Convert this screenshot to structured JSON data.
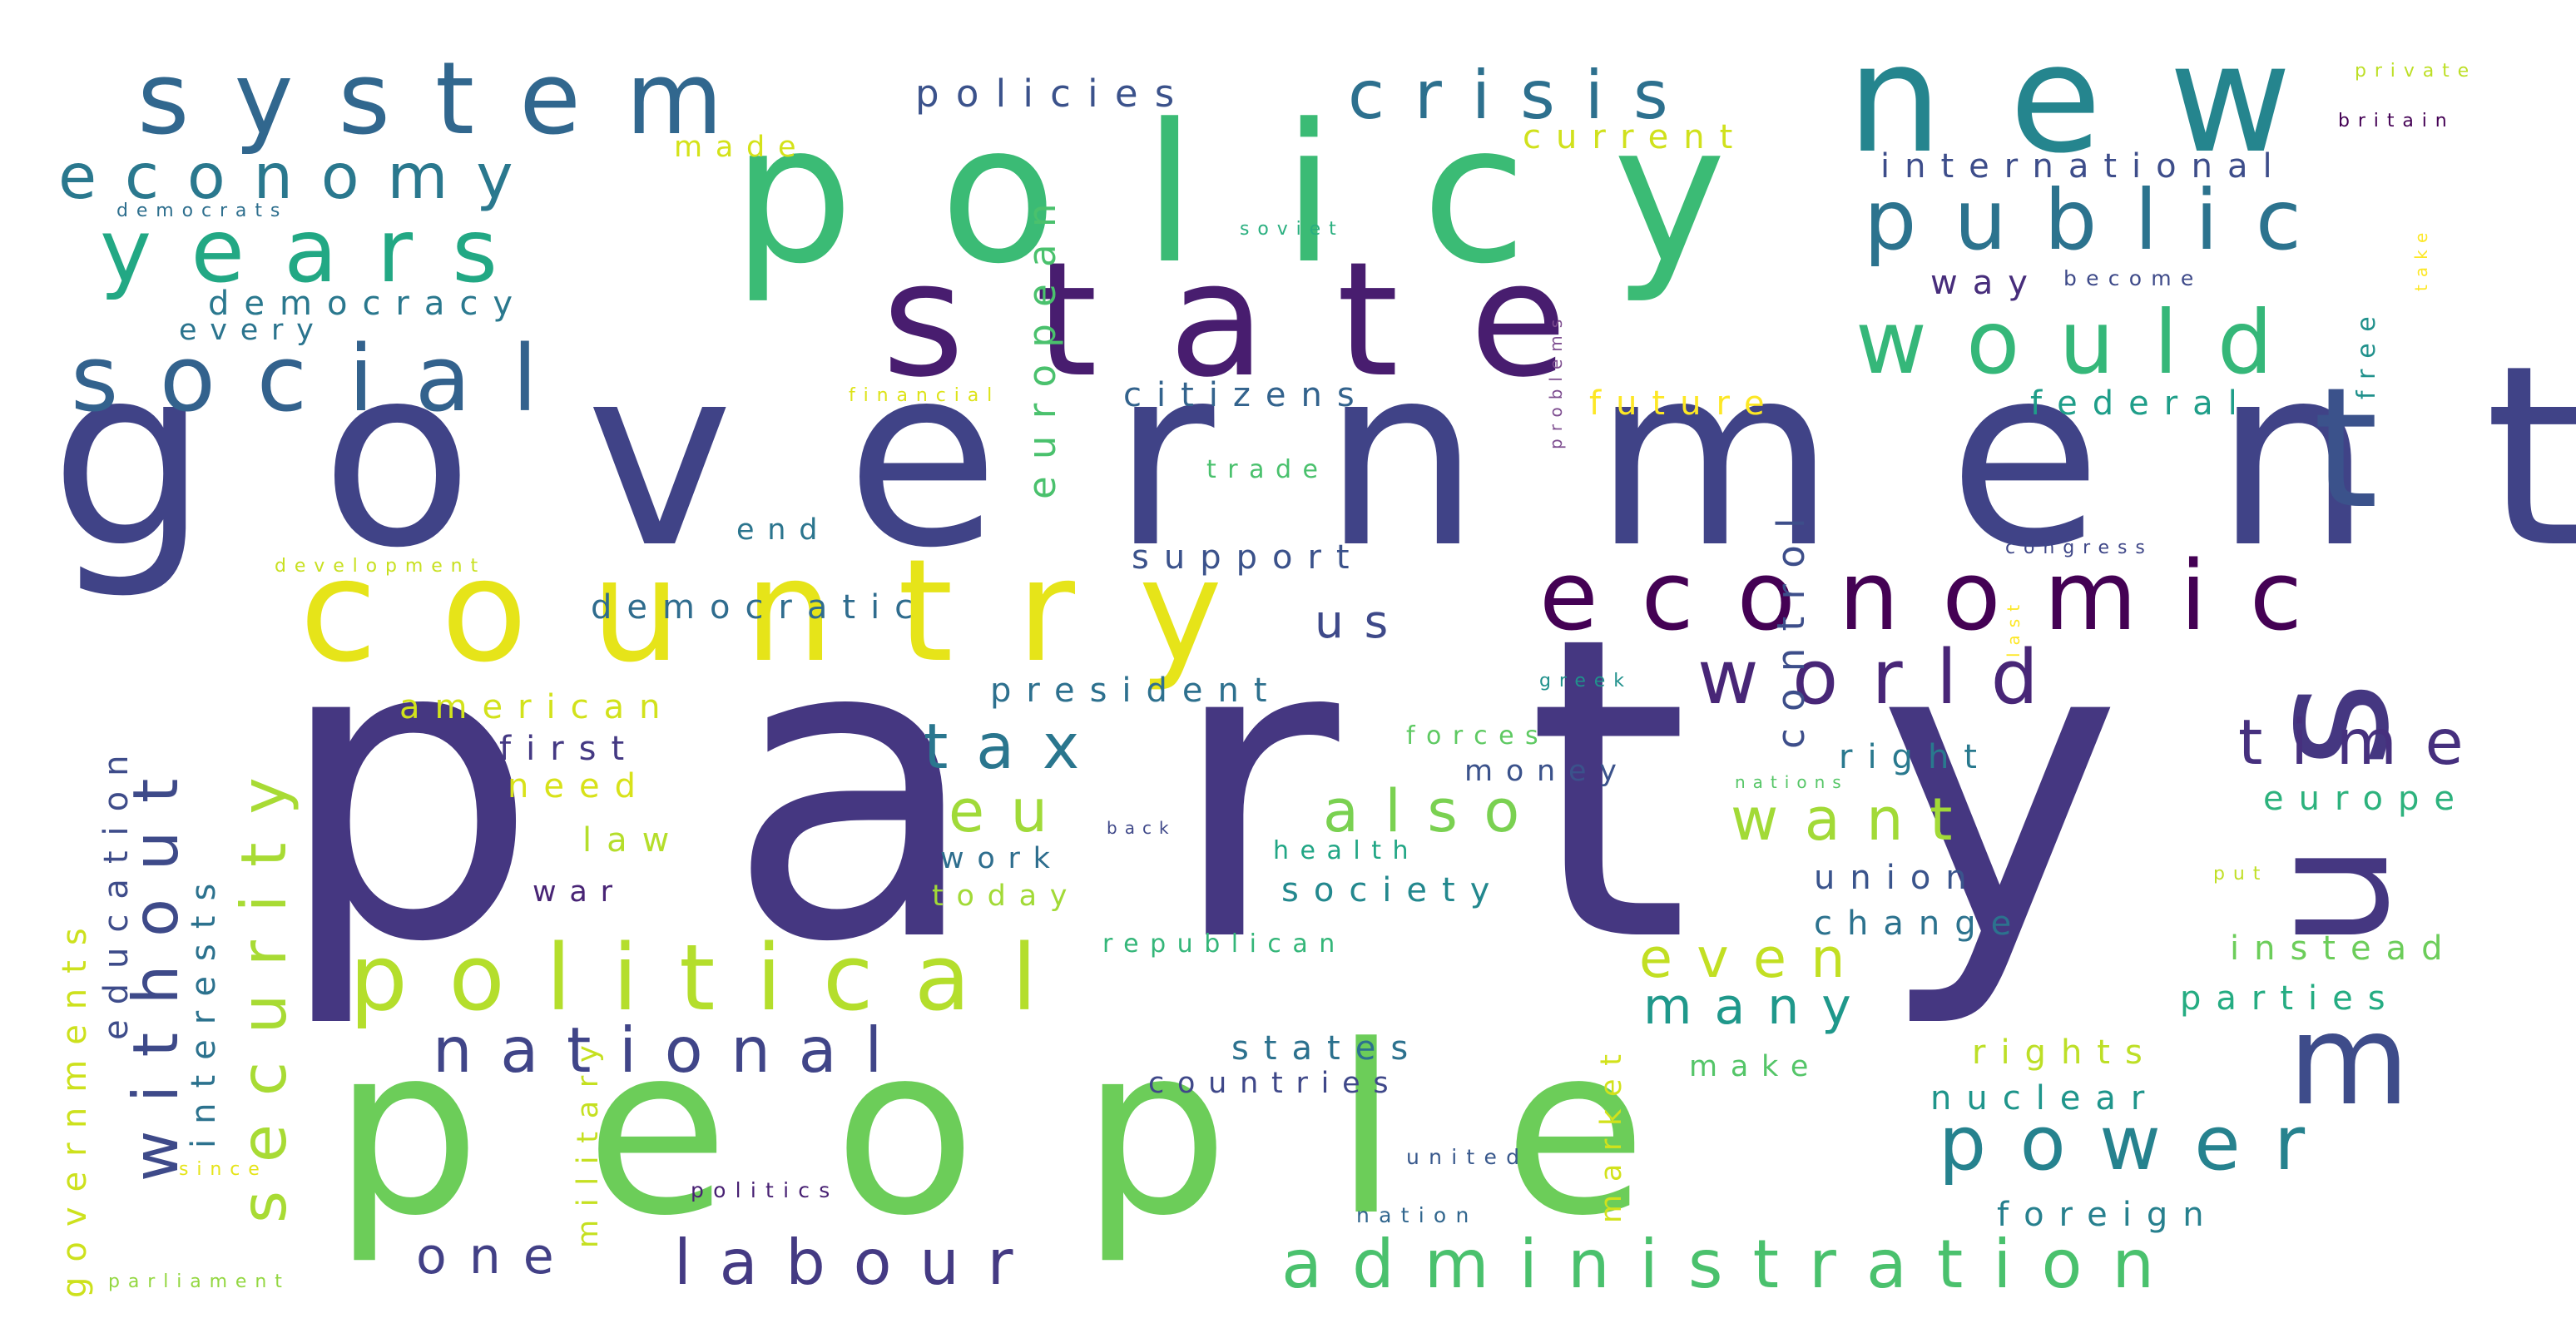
{
  "words": [
    {
      "text": "party",
      "color": "#453781"
    },
    {
      "text": "government",
      "color": "#404387"
    },
    {
      "text": "people",
      "color": "#6ccd59"
    },
    {
      "text": "policy",
      "color": "#3bbb75"
    },
    {
      "text": "state",
      "color": "#481d6f"
    },
    {
      "text": "country",
      "color": "#e6e419"
    },
    {
      "text": "new",
      "color": "#25858e"
    },
    {
      "text": "system",
      "color": "#31678e"
    },
    {
      "text": "economic",
      "color": "#440154"
    },
    {
      "text": "political",
      "color": "#b4de2c"
    },
    {
      "text": "us",
      "color": "#453781"
    },
    {
      "text": "public",
      "color": "#2c738e"
    },
    {
      "text": "would",
      "color": "#35b779"
    },
    {
      "text": "social",
      "color": "#33628d"
    },
    {
      "text": "years",
      "color": "#22a884"
    },
    {
      "text": "crisis",
      "color": "#2d708e"
    },
    {
      "text": "economy",
      "color": "#2a788e"
    },
    {
      "text": "world",
      "color": "#482677"
    },
    {
      "text": "administration",
      "color": "#4ac16d"
    },
    {
      "text": "power",
      "color": "#26828e"
    },
    {
      "text": "national",
      "color": "#404588"
    },
    {
      "text": "labour",
      "color": "#443a83"
    },
    {
      "text": "time",
      "color": "#46307e"
    },
    {
      "text": "tax",
      "color": "#2a768e"
    },
    {
      "text": "also",
      "color": "#7ad151"
    },
    {
      "text": "want",
      "color": "#a2da37"
    },
    {
      "text": "eu",
      "color": "#a0da39"
    },
    {
      "text": "even",
      "color": "#c2df23"
    },
    {
      "text": "many",
      "color": "#1f988b"
    },
    {
      "text": "one",
      "color": "#424086"
    },
    {
      "text": "security",
      "color": "#a8db34"
    },
    {
      "text": "without",
      "color": "#3e4a89"
    },
    {
      "text": "t",
      "color": "#3b528b"
    },
    {
      "text": "m",
      "color": "#3e4c8a"
    },
    {
      "text": "us",
      "color": "#3e4989"
    },
    {
      "text": "policies",
      "color": "#3b528b"
    },
    {
      "text": "democracy",
      "color": "#2a788e"
    },
    {
      "text": "citizens",
      "color": "#33638d"
    },
    {
      "text": "democratic",
      "color": "#2f6c8e"
    },
    {
      "text": "support",
      "color": "#3b528b"
    },
    {
      "text": "president",
      "color": "#2d708e"
    },
    {
      "text": "american",
      "color": "#d2e21b"
    },
    {
      "text": "first",
      "color": "#443983"
    },
    {
      "text": "need",
      "color": "#d8e219"
    },
    {
      "text": "law",
      "color": "#b5de2b"
    },
    {
      "text": "war",
      "color": "#482475"
    },
    {
      "text": "work",
      "color": "#2e6e8e"
    },
    {
      "text": "today",
      "color": "#a2da37"
    },
    {
      "text": "society",
      "color": "#23888e"
    },
    {
      "text": "union",
      "color": "#3a548c"
    },
    {
      "text": "change",
      "color": "#2c728e"
    },
    {
      "text": "right",
      "color": "#29798e"
    },
    {
      "text": "europe",
      "color": "#2db27d"
    },
    {
      "text": "instead",
      "color": "#6ccd5a"
    },
    {
      "text": "parties",
      "color": "#25ac82"
    },
    {
      "text": "rights",
      "color": "#bddf26"
    },
    {
      "text": "nuclear",
      "color": "#1f958b"
    },
    {
      "text": "foreign",
      "color": "#27808e"
    },
    {
      "text": "international",
      "color": "#3d4d8a"
    },
    {
      "text": "way",
      "color": "#472d7b"
    },
    {
      "text": "federal",
      "color": "#1f9e89"
    },
    {
      "text": "future",
      "color": "#fde725"
    },
    {
      "text": "current",
      "color": "#d0e11c"
    },
    {
      "text": "made",
      "color": "#d4e21a"
    },
    {
      "text": "every",
      "color": "#2b748e"
    },
    {
      "text": "states",
      "color": "#2c718e"
    },
    {
      "text": "countries",
      "color": "#3f4889"
    },
    {
      "text": "money",
      "color": "#3b528b"
    },
    {
      "text": "end",
      "color": "#2b758e"
    },
    {
      "text": "health",
      "color": "#21a685"
    },
    {
      "text": "forces",
      "color": "#5ec962"
    },
    {
      "text": "make",
      "color": "#54c568"
    },
    {
      "text": "republican",
      "color": "#34b679"
    },
    {
      "text": "trade",
      "color": "#4ac16d"
    },
    {
      "text": "financial",
      "color": "#dde318"
    },
    {
      "text": "development",
      "color": "#c8e020"
    },
    {
      "text": "parliament",
      "color": "#93d741"
    },
    {
      "text": "politics",
      "color": "#482173"
    },
    {
      "text": "united",
      "color": "#38588c"
    },
    {
      "text": "nation",
      "color": "#31668e"
    },
    {
      "text": "since",
      "color": "#e5e419"
    },
    {
      "text": "democrats",
      "color": "#2e6f8e"
    },
    {
      "text": "soviet",
      "color": "#29af7f"
    },
    {
      "text": "become",
      "color": "#3e4a89"
    },
    {
      "text": "congress",
      "color": "#3f4788"
    },
    {
      "text": "greek",
      "color": "#21918c"
    },
    {
      "text": "nations",
      "color": "#56c667"
    },
    {
      "text": "back",
      "color": "#3f4889"
    },
    {
      "text": "put",
      "color": "#c0df25"
    },
    {
      "text": "private",
      "color": "#bddf26"
    },
    {
      "text": "britain",
      "color": "#440154"
    },
    {
      "text": "european",
      "color": "#4ac16d"
    },
    {
      "text": "control",
      "color": "#3d4e8a"
    },
    {
      "text": "education",
      "color": "#3e4c8a"
    },
    {
      "text": "governments",
      "color": "#cde11d"
    },
    {
      "text": "interests",
      "color": "#2c728e"
    },
    {
      "text": "military",
      "color": "#c5e021"
    },
    {
      "text": "market",
      "color": "#d2e21b"
    },
    {
      "text": "problems",
      "color": "#7e4e90"
    },
    {
      "text": "free",
      "color": "#21918c"
    },
    {
      "text": "take",
      "color": "#fde725"
    },
    {
      "text": "last",
      "color": "#fde725"
    }
  ]
}
